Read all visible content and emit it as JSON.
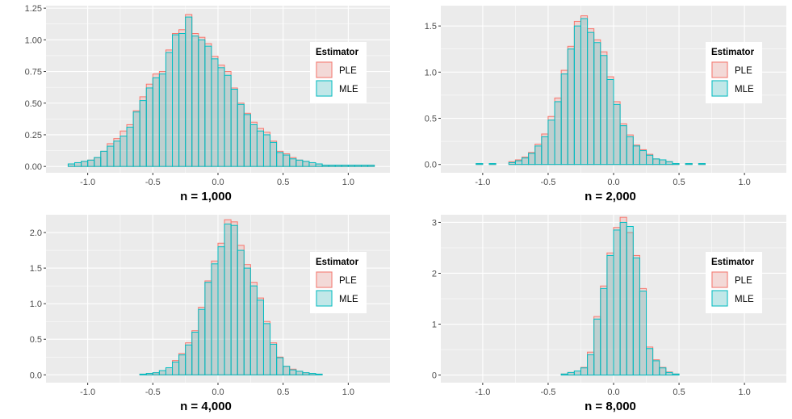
{
  "chart_data": [
    {
      "type": "histogram",
      "title": "n = 1,000",
      "xlabel": "",
      "ylabel": "",
      "xlim": [
        -1.32,
        1.32
      ],
      "ylim": [
        -0.05,
        1.27
      ],
      "xticks": [
        -1.0,
        -0.5,
        0.0,
        0.5,
        1.0
      ],
      "xtick_labels": [
        "-1.0",
        "-0.5",
        "0.0",
        "0.5",
        "1.0"
      ],
      "yticks": [
        0.0,
        0.25,
        0.5,
        0.75,
        1.0,
        1.25
      ],
      "ytick_labels": [
        "0.00",
        "0.25",
        "0.50",
        "0.75",
        "1.00",
        "1.25"
      ],
      "bin_start": -1.2,
      "bin_width": 0.05,
      "series": [
        {
          "name": "PLE",
          "values": [
            0,
            0.02,
            0.03,
            0.04,
            0.05,
            0.07,
            0.12,
            0.18,
            0.22,
            0.28,
            0.33,
            0.44,
            0.55,
            0.65,
            0.73,
            0.75,
            0.92,
            1.05,
            1.08,
            1.2,
            1.05,
            1.02,
            0.97,
            0.87,
            0.8,
            0.75,
            0.62,
            0.5,
            0.42,
            0.35,
            0.3,
            0.27,
            0.2,
            0.12,
            0.1,
            0.07,
            0.05,
            0.04,
            0.03,
            0.02,
            0.01,
            0.01,
            0.01,
            0.01,
            0.01,
            0.01,
            0.01,
            0.01
          ]
        },
        {
          "name": "MLE",
          "values": [
            0,
            0.02,
            0.03,
            0.04,
            0.05,
            0.07,
            0.12,
            0.16,
            0.2,
            0.24,
            0.31,
            0.43,
            0.52,
            0.62,
            0.7,
            0.73,
            0.9,
            1.04,
            1.05,
            1.18,
            1.03,
            1.0,
            0.95,
            0.85,
            0.78,
            0.72,
            0.61,
            0.49,
            0.41,
            0.33,
            0.28,
            0.25,
            0.19,
            0.11,
            0.09,
            0.06,
            0.05,
            0.04,
            0.03,
            0.02,
            0.01,
            0.01,
            0.01,
            0.01,
            0.01,
            0.01,
            0.01,
            0.01
          ]
        }
      ],
      "legend": {
        "title": "Estimator",
        "entries": [
          "PLE",
          "MLE"
        ],
        "position": "right"
      }
    },
    {
      "type": "histogram",
      "title": "n = 2,000",
      "xlabel": "",
      "ylabel": "",
      "xlim": [
        -1.32,
        1.32
      ],
      "ylim": [
        -0.09,
        1.72
      ],
      "xticks": [
        -1.0,
        -0.5,
        0.0,
        0.5,
        1.0
      ],
      "xtick_labels": [
        "-1.0",
        "-0.5",
        "0.0",
        "0.5",
        "1.0"
      ],
      "yticks": [
        0.0,
        0.5,
        1.0,
        1.5
      ],
      "ytick_labels": [
        "0.0",
        "0.5",
        "1.0",
        "1.5"
      ],
      "bin_start": -1.2,
      "bin_width": 0.05,
      "series": [
        {
          "name": "PLE",
          "values": [
            0,
            0,
            0,
            0.01,
            0,
            0.01,
            0,
            0,
            0.03,
            0.05,
            0.08,
            0.13,
            0.22,
            0.33,
            0.52,
            0.72,
            1.02,
            1.28,
            1.55,
            1.61,
            1.47,
            1.35,
            1.22,
            0.95,
            0.68,
            0.44,
            0.32,
            0.21,
            0.16,
            0.11,
            0.06,
            0.05,
            0.03,
            0.01,
            0,
            0.01,
            0,
            0.01,
            0,
            0,
            0,
            0,
            0,
            0,
            0,
            0,
            0,
            0
          ]
        },
        {
          "name": "MLE",
          "values": [
            0,
            0,
            0,
            0.01,
            0,
            0.01,
            0,
            0,
            0.02,
            0.04,
            0.07,
            0.12,
            0.2,
            0.3,
            0.48,
            0.68,
            0.98,
            1.25,
            1.5,
            1.58,
            1.43,
            1.32,
            1.18,
            0.92,
            0.65,
            0.42,
            0.3,
            0.2,
            0.15,
            0.1,
            0.06,
            0.05,
            0.03,
            0.01,
            0,
            0.01,
            0,
            0.01,
            0,
            0,
            0,
            0,
            0,
            0,
            0,
            0,
            0,
            0
          ]
        }
      ],
      "legend": {
        "title": "Estimator",
        "entries": [
          "PLE",
          "MLE"
        ],
        "position": "right"
      }
    },
    {
      "type": "histogram",
      "title": "n = 4,000",
      "xlabel": "",
      "ylabel": "",
      "xlim": [
        -1.32,
        1.32
      ],
      "ylim": [
        -0.11,
        2.25
      ],
      "xticks": [
        -1.0,
        -0.5,
        0.0,
        0.5,
        1.0
      ],
      "xtick_labels": [
        "-1.0",
        "-0.5",
        "0.0",
        "0.5",
        "1.0"
      ],
      "yticks": [
        0.0,
        0.5,
        1.0,
        1.5,
        2.0
      ],
      "ytick_labels": [
        "0.0",
        "0.5",
        "1.0",
        "1.5",
        "2.0"
      ],
      "bin_start": -1.2,
      "bin_width": 0.05,
      "series": [
        {
          "name": "PLE",
          "values": [
            0,
            0,
            0,
            0,
            0,
            0,
            0,
            0,
            0,
            0,
            0,
            0,
            0.01,
            0.02,
            0.03,
            0.06,
            0.1,
            0.2,
            0.3,
            0.45,
            0.62,
            0.95,
            1.32,
            1.6,
            1.85,
            2.18,
            2.15,
            1.82,
            1.55,
            1.3,
            1.08,
            0.75,
            0.45,
            0.25,
            0.12,
            0.08,
            0.05,
            0.03,
            0.02,
            0.01,
            0,
            0,
            0,
            0,
            0,
            0,
            0,
            0
          ]
        },
        {
          "name": "MLE",
          "values": [
            0,
            0,
            0,
            0,
            0,
            0,
            0,
            0,
            0,
            0,
            0,
            0,
            0.01,
            0.02,
            0.03,
            0.06,
            0.1,
            0.18,
            0.28,
            0.42,
            0.6,
            0.92,
            1.3,
            1.56,
            1.8,
            2.12,
            2.1,
            1.75,
            1.5,
            1.25,
            1.05,
            0.72,
            0.43,
            0.24,
            0.12,
            0.07,
            0.05,
            0.03,
            0.02,
            0.01,
            0,
            0,
            0,
            0,
            0,
            0,
            0,
            0
          ]
        }
      ],
      "legend": {
        "title": "Estimator",
        "entries": [
          "PLE",
          "MLE"
        ],
        "position": "right"
      }
    },
    {
      "type": "histogram",
      "title": "n = 8,000",
      "xlabel": "",
      "ylabel": "",
      "xlim": [
        -1.32,
        1.32
      ],
      "ylim": [
        -0.15,
        3.15
      ],
      "xticks": [
        -1.0,
        -0.5,
        0.0,
        0.5,
        1.0
      ],
      "xtick_labels": [
        "-1.0",
        "-0.5",
        "0.0",
        "0.5",
        "1.0"
      ],
      "yticks": [
        0,
        1,
        2,
        3
      ],
      "ytick_labels": [
        "0",
        "1",
        "2",
        "3"
      ],
      "bin_start": -1.2,
      "bin_width": 0.05,
      "series": [
        {
          "name": "PLE",
          "values": [
            0,
            0,
            0,
            0,
            0,
            0,
            0,
            0,
            0,
            0,
            0,
            0,
            0,
            0,
            0,
            0,
            0.02,
            0.05,
            0.08,
            0.15,
            0.45,
            1.15,
            1.75,
            2.4,
            2.9,
            3.1,
            2.8,
            2.35,
            1.7,
            0.55,
            0.3,
            0.15,
            0.06,
            0.02,
            0,
            0,
            0,
            0,
            0,
            0,
            0,
            0,
            0,
            0,
            0,
            0,
            0,
            0
          ]
        },
        {
          "name": "MLE",
          "values": [
            0,
            0,
            0,
            0,
            0,
            0,
            0,
            0,
            0,
            0,
            0,
            0,
            0,
            0,
            0,
            0,
            0.02,
            0.05,
            0.08,
            0.14,
            0.4,
            1.1,
            1.7,
            2.35,
            2.85,
            3.0,
            2.92,
            2.3,
            1.65,
            0.52,
            0.28,
            0.14,
            0.05,
            0.02,
            0,
            0,
            0,
            0,
            0,
            0,
            0,
            0,
            0,
            0,
            0,
            0,
            0,
            0
          ]
        }
      ],
      "legend": {
        "title": "Estimator",
        "entries": [
          "PLE",
          "MLE"
        ],
        "position": "right"
      }
    }
  ],
  "colors": {
    "panel_bg": "#ebebeb",
    "grid": "#ffffff",
    "ple_fill": "#f8766d",
    "ple_line": "#f8766d",
    "mle_fill": "#00bfc4",
    "mle_line": "#00bfc4",
    "axis_text": "#4d4d4d"
  }
}
